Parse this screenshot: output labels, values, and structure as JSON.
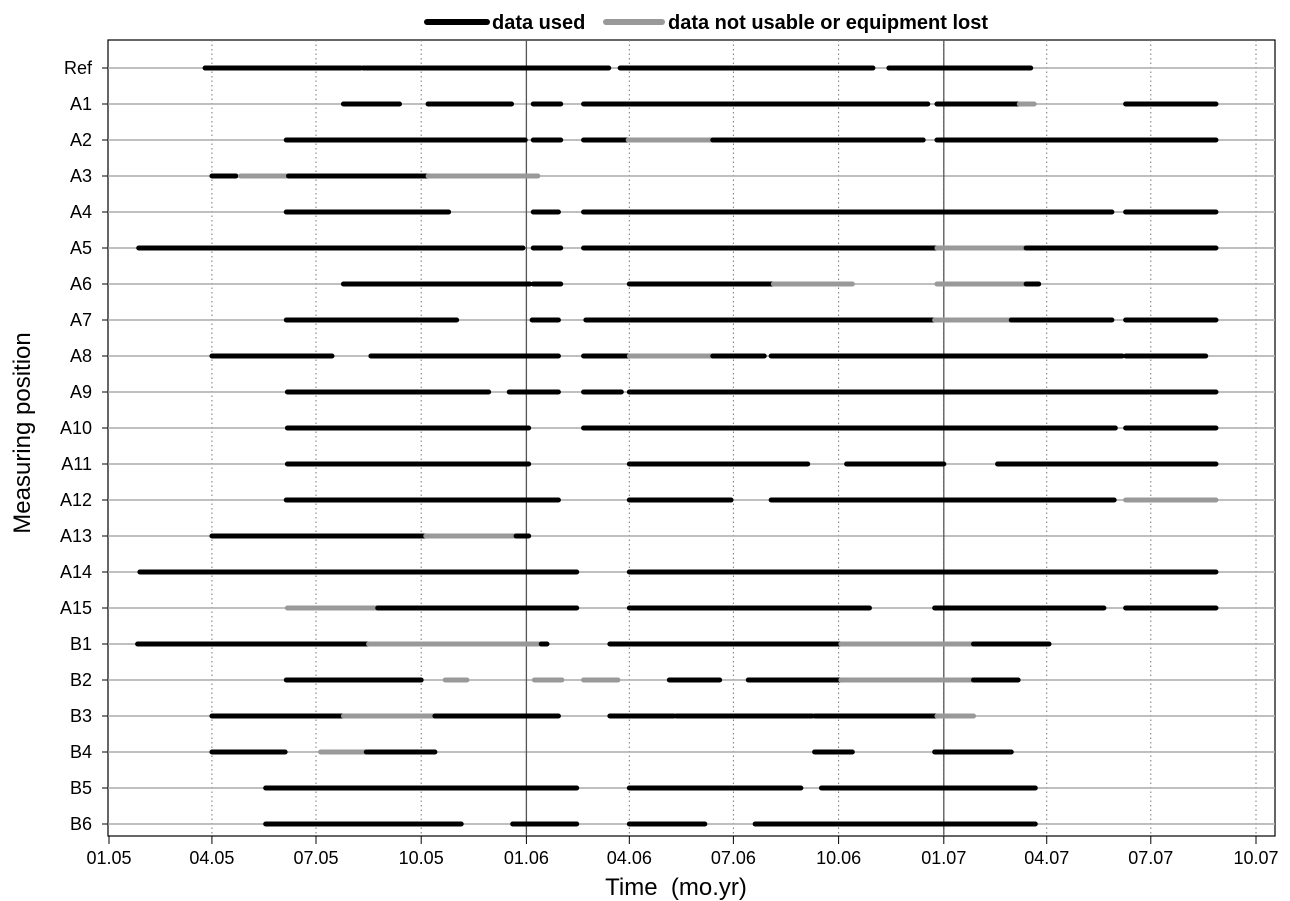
{
  "chart_data": {
    "type": "timeline",
    "xlabel": "Time  (mo.yr)",
    "ylabel": "Measuring position",
    "xlim": [
      "2005-01-01",
      "2007-10-01"
    ],
    "x_ticks": [
      "2005-01-01",
      "2005-04-01",
      "2005-07-01",
      "2005-10-01",
      "2006-01-01",
      "2006-04-01",
      "2006-07-01",
      "2006-10-01",
      "2007-01-01",
      "2007-04-01",
      "2007-07-01",
      "2007-10-01"
    ],
    "x_tick_labels": [
      "01.05",
      "04.05",
      "07.05",
      "10.05",
      "01.06",
      "04.06",
      "07.06",
      "10.06",
      "01.07",
      "04.07",
      "07.07",
      "10.07"
    ],
    "reference_lines": [
      "2006-01-01",
      "2007-01-01"
    ],
    "grid": true,
    "legend_position": "top",
    "legend": [
      {
        "key": "used",
        "label": "data used",
        "color": "#000000"
      },
      {
        "key": "lost",
        "label": "data not usable or equipment lost",
        "color": "#999999"
      }
    ],
    "categories": [
      "Ref",
      "A1",
      "A2",
      "A3",
      "A4",
      "A5",
      "A6",
      "A7",
      "A8",
      "A9",
      "A10",
      "A11",
      "A12",
      "A13",
      "A14",
      "A15",
      "B1",
      "B2",
      "B3",
      "B4",
      "B5",
      "B6"
    ],
    "rows": [
      {
        "name": "Ref",
        "segments": [
          [
            "2005-03-26",
            "2005-08-09",
            "used"
          ],
          [
            "2005-08-11",
            "2006-03-14",
            "used"
          ],
          [
            "2006-03-24",
            "2006-10-31",
            "used"
          ],
          [
            "2006-11-14",
            "2007-03-18",
            "used"
          ]
        ]
      },
      {
        "name": "A1",
        "segments": [
          [
            "2005-07-25",
            "2005-09-12",
            "used"
          ],
          [
            "2005-10-07",
            "2005-12-19",
            "used"
          ],
          [
            "2006-01-07",
            "2006-01-31",
            "used"
          ],
          [
            "2006-02-20",
            "2006-12-18",
            "used"
          ],
          [
            "2006-12-26",
            "2007-03-08",
            "used"
          ],
          [
            "2007-03-08",
            "2007-03-21",
            "lost"
          ],
          [
            "2007-06-09",
            "2007-08-27",
            "used"
          ]
        ]
      },
      {
        "name": "A2",
        "segments": [
          [
            "2005-06-05",
            "2005-12-31",
            "used"
          ],
          [
            "2006-01-07",
            "2006-01-31",
            "used"
          ],
          [
            "2006-02-20",
            "2006-03-31",
            "used"
          ],
          [
            "2006-03-31",
            "2006-06-13",
            "lost"
          ],
          [
            "2006-06-13",
            "2006-12-14",
            "used"
          ],
          [
            "2006-12-26",
            "2007-08-27",
            "used"
          ]
        ]
      },
      {
        "name": "A3",
        "segments": [
          [
            "2005-04-01",
            "2005-04-22",
            "used"
          ],
          [
            "2005-04-26",
            "2005-06-07",
            "lost"
          ],
          [
            "2005-06-07",
            "2005-10-07",
            "used"
          ],
          [
            "2005-10-07",
            "2006-01-11",
            "lost"
          ]
        ]
      },
      {
        "name": "A4",
        "segments": [
          [
            "2005-06-05",
            "2005-10-25",
            "used"
          ],
          [
            "2006-01-07",
            "2006-01-29",
            "used"
          ],
          [
            "2006-02-20",
            "2007-05-28",
            "used"
          ],
          [
            "2007-06-09",
            "2007-08-27",
            "used"
          ]
        ]
      },
      {
        "name": "A5",
        "segments": [
          [
            "2005-01-27",
            "2005-12-29",
            "used"
          ],
          [
            "2006-01-07",
            "2006-01-31",
            "used"
          ],
          [
            "2006-02-20",
            "2006-12-26",
            "used"
          ],
          [
            "2006-12-26",
            "2007-03-14",
            "lost"
          ],
          [
            "2007-03-14",
            "2007-08-27",
            "used"
          ]
        ]
      },
      {
        "name": "A6",
        "segments": [
          [
            "2005-07-25",
            "2006-01-04",
            "used"
          ],
          [
            "2006-01-07",
            "2006-01-31",
            "used"
          ],
          [
            "2006-04-01",
            "2006-08-05",
            "used"
          ],
          [
            "2006-08-05",
            "2006-10-13",
            "lost"
          ],
          [
            "2006-12-26",
            "2007-03-14",
            "lost"
          ],
          [
            "2007-03-14",
            "2007-03-25",
            "used"
          ]
        ]
      },
      {
        "name": "A7",
        "segments": [
          [
            "2005-06-05",
            "2005-11-01",
            "used"
          ],
          [
            "2006-01-06",
            "2006-01-29",
            "used"
          ],
          [
            "2006-02-22",
            "2006-12-24",
            "used"
          ],
          [
            "2006-12-24",
            "2007-03-01",
            "lost"
          ],
          [
            "2007-03-01",
            "2007-05-28",
            "used"
          ],
          [
            "2007-06-09",
            "2007-08-27",
            "used"
          ]
        ]
      },
      {
        "name": "A8",
        "segments": [
          [
            "2005-04-01",
            "2005-07-15",
            "used"
          ],
          [
            "2005-08-18",
            "2006-01-29",
            "used"
          ],
          [
            "2006-02-20",
            "2006-04-01",
            "used"
          ],
          [
            "2006-04-01",
            "2006-06-13",
            "lost"
          ],
          [
            "2006-06-13",
            "2006-07-28",
            "used"
          ],
          [
            "2006-08-03",
            "2007-06-06",
            "used"
          ],
          [
            "2007-06-09",
            "2007-08-18",
            "used"
          ]
        ]
      },
      {
        "name": "A9",
        "segments": [
          [
            "2005-06-06",
            "2005-11-29",
            "used"
          ],
          [
            "2005-12-17",
            "2006-01-29",
            "used"
          ],
          [
            "2006-02-20",
            "2006-03-25",
            "used"
          ],
          [
            "2006-04-01",
            "2007-08-27",
            "used"
          ]
        ]
      },
      {
        "name": "A10",
        "segments": [
          [
            "2005-06-06",
            "2006-01-03",
            "used"
          ],
          [
            "2006-02-20",
            "2007-05-31",
            "used"
          ],
          [
            "2007-06-09",
            "2007-08-27",
            "used"
          ]
        ]
      },
      {
        "name": "A11",
        "segments": [
          [
            "2005-06-06",
            "2006-01-03",
            "used"
          ],
          [
            "2006-04-01",
            "2006-09-04",
            "used"
          ],
          [
            "2006-10-08",
            "2007-01-01",
            "used"
          ],
          [
            "2007-02-17",
            "2007-08-27",
            "used"
          ]
        ]
      },
      {
        "name": "A12",
        "segments": [
          [
            "2005-06-05",
            "2006-01-29",
            "used"
          ],
          [
            "2006-04-01",
            "2006-06-29",
            "used"
          ],
          [
            "2006-08-03",
            "2007-05-30",
            "used"
          ],
          [
            "2007-06-09",
            "2007-08-27",
            "lost"
          ]
        ]
      },
      {
        "name": "A13",
        "segments": [
          [
            "2005-04-01",
            "2005-10-05",
            "used"
          ],
          [
            "2005-10-05",
            "2005-12-23",
            "lost"
          ],
          [
            "2005-12-23",
            "2006-01-03",
            "used"
          ]
        ]
      },
      {
        "name": "A14",
        "segments": [
          [
            "2005-01-28",
            "2006-02-14",
            "used"
          ],
          [
            "2006-04-01",
            "2007-08-27",
            "used"
          ]
        ]
      },
      {
        "name": "A15",
        "segments": [
          [
            "2005-06-06",
            "2005-08-24",
            "lost"
          ],
          [
            "2005-08-24",
            "2005-12-20",
            "used"
          ],
          [
            "2005-12-20",
            "2006-02-14",
            "used"
          ],
          [
            "2006-04-01",
            "2006-10-28",
            "used"
          ],
          [
            "2006-12-24",
            "2007-05-21",
            "used"
          ],
          [
            "2007-06-09",
            "2007-08-27",
            "used"
          ]
        ]
      },
      {
        "name": "B1",
        "segments": [
          [
            "2005-01-26",
            "2005-08-16",
            "used"
          ],
          [
            "2005-08-16",
            "2006-01-14",
            "lost"
          ],
          [
            "2006-01-14",
            "2006-01-19",
            "used"
          ],
          [
            "2006-03-15",
            "2006-10-03",
            "used"
          ],
          [
            "2006-10-03",
            "2007-01-27",
            "lost"
          ],
          [
            "2007-01-27",
            "2007-04-03",
            "used"
          ]
        ]
      },
      {
        "name": "B2",
        "segments": [
          [
            "2005-06-05",
            "2005-10-01",
            "used"
          ],
          [
            "2005-10-22",
            "2005-11-10",
            "lost"
          ],
          [
            "2006-01-08",
            "2006-02-01",
            "lost"
          ],
          [
            "2006-02-20",
            "2006-03-22",
            "lost"
          ],
          [
            "2006-05-06",
            "2006-06-19",
            "used"
          ],
          [
            "2006-07-14",
            "2006-10-03",
            "used"
          ],
          [
            "2006-10-03",
            "2007-01-27",
            "lost"
          ],
          [
            "2007-01-27",
            "2007-03-07",
            "used"
          ]
        ]
      },
      {
        "name": "B3",
        "segments": [
          [
            "2005-04-01",
            "2005-06-04",
            "used"
          ],
          [
            "2005-06-04",
            "2005-07-25",
            "used"
          ],
          [
            "2005-07-25",
            "2005-10-13",
            "lost"
          ],
          [
            "2005-10-13",
            "2006-01-29",
            "used"
          ],
          [
            "2006-03-15",
            "2006-05-10",
            "used"
          ],
          [
            "2006-05-12",
            "2006-09-08",
            "used"
          ],
          [
            "2006-09-10",
            "2006-12-26",
            "used"
          ],
          [
            "2006-12-26",
            "2007-01-27",
            "lost"
          ]
        ]
      },
      {
        "name": "B4",
        "segments": [
          [
            "2005-04-01",
            "2005-06-04",
            "used"
          ],
          [
            "2005-07-05",
            "2005-08-14",
            "lost"
          ],
          [
            "2005-08-14",
            "2005-10-13",
            "used"
          ],
          [
            "2006-09-10",
            "2006-10-13",
            "used"
          ],
          [
            "2006-12-24",
            "2007-03-01",
            "used"
          ]
        ]
      },
      {
        "name": "B5",
        "segments": [
          [
            "2005-05-18",
            "2005-12-21",
            "used"
          ],
          [
            "2005-12-21",
            "2006-02-14",
            "used"
          ],
          [
            "2006-04-01",
            "2006-08-29",
            "used"
          ],
          [
            "2006-09-16",
            "2007-03-22",
            "used"
          ]
        ]
      },
      {
        "name": "B6",
        "segments": [
          [
            "2005-05-18",
            "2005-11-05",
            "used"
          ],
          [
            "2005-12-20",
            "2006-02-14",
            "used"
          ],
          [
            "2006-04-01",
            "2006-06-06",
            "used"
          ],
          [
            "2006-07-20",
            "2007-03-22",
            "used"
          ]
        ]
      }
    ]
  }
}
